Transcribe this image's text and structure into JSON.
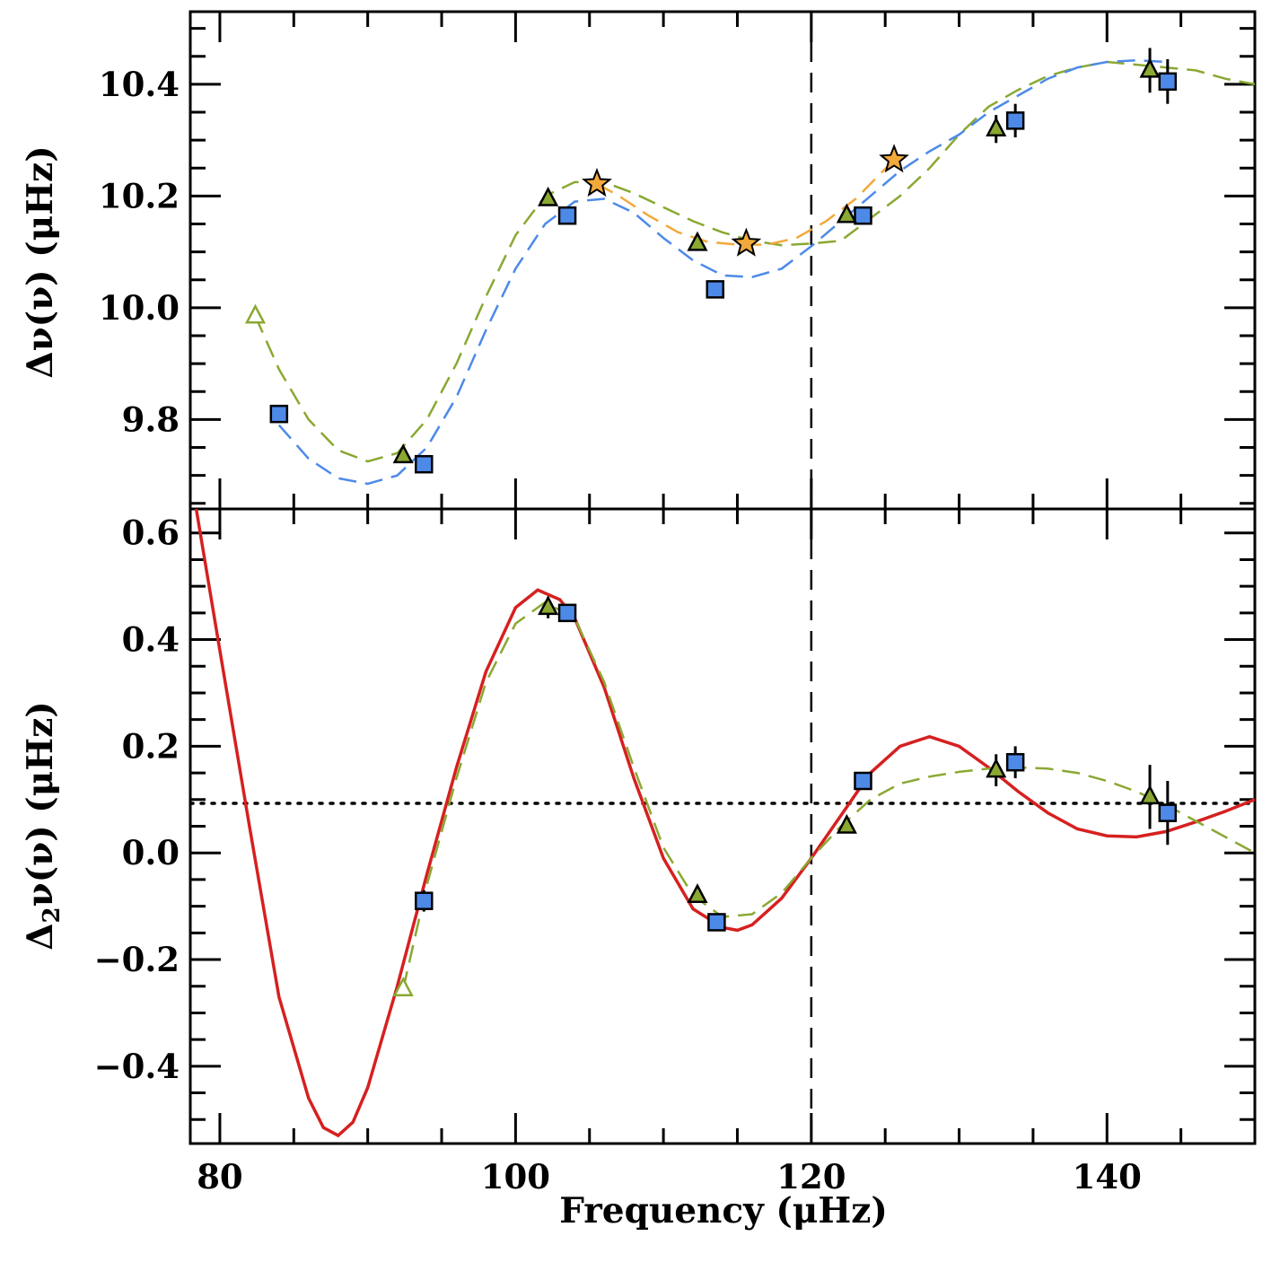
{
  "chart_data": [
    {
      "type": "scatter",
      "panel": "top",
      "ylabel": "Δν(ν) (μHz)",
      "ylabel_parts": {
        "main": "Δν(ν) (μHz)"
      },
      "xlim": [
        78,
        150
      ],
      "ylim": [
        9.64,
        10.53
      ],
      "yticks": [
        9.8,
        10.0,
        10.2,
        10.4
      ],
      "ytick_labels": [
        "9.8",
        "10.0",
        "10.2",
        "10.4"
      ],
      "vline_x": 120,
      "series": [
        {
          "name": "squares",
          "marker": "square",
          "color": "#4d8ae8",
          "points": [
            [
              84.0,
              9.81,
              0
            ],
            [
              93.8,
              9.72,
              0
            ],
            [
              103.5,
              10.165,
              0
            ],
            [
              113.5,
              10.033,
              0
            ],
            [
              123.5,
              10.165,
              0
            ],
            [
              133.8,
              10.335,
              0.03
            ],
            [
              144.1,
              10.405,
              0.04
            ]
          ]
        },
        {
          "name": "triangles",
          "marker": "triangle",
          "color": "#8aa832",
          "points": [
            [
              92.4,
              9.735,
              0
            ],
            [
              102.2,
              10.195,
              0
            ],
            [
              112.3,
              10.115,
              0
            ],
            [
              122.4,
              10.165,
              0
            ],
            [
              132.5,
              10.32,
              0.025
            ],
            [
              142.9,
              10.425,
              0.04
            ]
          ]
        },
        {
          "name": "open-triangles",
          "marker": "open-triangle",
          "color": "#8aa832",
          "points": [
            [
              82.4,
              9.985,
              0
            ]
          ]
        },
        {
          "name": "stars",
          "marker": "star",
          "color": "#f2a93b",
          "points": [
            [
              105.5,
              10.222,
              0
            ],
            [
              115.6,
              10.115,
              0
            ],
            [
              125.6,
              10.265,
              0
            ]
          ]
        }
      ],
      "curves": [
        {
          "name": "green-dashed-fit",
          "color": "#8aa832",
          "style": "dashed",
          "points": [
            [
              82.4,
              9.985
            ],
            [
              84,
              9.89
            ],
            [
              86,
              9.8
            ],
            [
              88,
              9.745
            ],
            [
              90,
              9.725
            ],
            [
              92,
              9.74
            ],
            [
              94,
              9.8
            ],
            [
              96,
              9.9
            ],
            [
              98,
              10.02
            ],
            [
              100,
              10.13
            ],
            [
              102,
              10.2
            ],
            [
              104,
              10.225
            ],
            [
              106,
              10.225
            ],
            [
              108,
              10.205
            ],
            [
              110,
              10.18
            ],
            [
              112,
              10.155
            ],
            [
              114,
              10.135
            ],
            [
              116,
              10.12
            ],
            [
              118,
              10.112
            ],
            [
              120,
              10.115
            ],
            [
              122,
              10.12
            ],
            [
              124,
              10.16
            ],
            [
              126,
              10.2
            ],
            [
              128,
              10.25
            ],
            [
              130,
              10.31
            ],
            [
              132,
              10.36
            ],
            [
              134,
              10.39
            ],
            [
              136,
              10.415
            ],
            [
              138,
              10.43
            ],
            [
              140,
              10.44
            ],
            [
              142,
              10.435
            ],
            [
              144,
              10.43
            ],
            [
              146,
              10.425
            ],
            [
              148,
              10.41
            ],
            [
              150,
              10.4
            ]
          ]
        },
        {
          "name": "blue-dashed-fit",
          "color": "#4d8ae8",
          "style": "dashed",
          "points": [
            [
              84,
              9.79
            ],
            [
              86,
              9.73
            ],
            [
              88,
              9.695
            ],
            [
              90,
              9.685
            ],
            [
              92,
              9.7
            ],
            [
              94,
              9.75
            ],
            [
              96,
              9.84
            ],
            [
              98,
              9.96
            ],
            [
              100,
              10.07
            ],
            [
              102,
              10.15
            ],
            [
              104,
              10.19
            ],
            [
              106,
              10.195
            ],
            [
              108,
              10.17
            ],
            [
              110,
              10.125
            ],
            [
              112,
              10.085
            ],
            [
              114,
              10.058
            ],
            [
              116,
              10.055
            ],
            [
              118,
              10.07
            ],
            [
              120,
              10.11
            ],
            [
              122,
              10.155
            ],
            [
              124,
              10.2
            ],
            [
              126,
              10.245
            ],
            [
              128,
              10.28
            ],
            [
              130,
              10.31
            ],
            [
              132,
              10.35
            ],
            [
              134,
              10.38
            ],
            [
              136,
              10.41
            ],
            [
              138,
              10.43
            ],
            [
              140,
              10.44
            ],
            [
              142,
              10.443
            ],
            [
              144,
              10.44
            ]
          ]
        },
        {
          "name": "orange-dashed-fit",
          "color": "#f2a93b",
          "style": "dashed",
          "points": [
            [
              105.5,
              10.222
            ],
            [
              107,
              10.2
            ],
            [
              109,
              10.165
            ],
            [
              111,
              10.135
            ],
            [
              113,
              10.118
            ],
            [
              115,
              10.113
            ],
            [
              117,
              10.113
            ],
            [
              119,
              10.125
            ],
            [
              121,
              10.155
            ],
            [
              123,
              10.195
            ],
            [
              125.6,
              10.265
            ]
          ]
        }
      ]
    },
    {
      "type": "scatter",
      "panel": "bottom",
      "title": "",
      "xlabel": "Frequency (μHz)",
      "ylabel": "Δ2ν(ν) (μHz)",
      "ylabel_parts": {
        "pre": "Δ",
        "sub": "2",
        "post": "ν(ν) (μHz)"
      },
      "xlim": [
        78,
        150
      ],
      "ylim": [
        -0.545,
        0.645
      ],
      "xticks": [
        80,
        100,
        120,
        140
      ],
      "xtick_labels": [
        "80",
        "100",
        "120",
        "140"
      ],
      "yticks": [
        -0.4,
        -0.2,
        0.0,
        0.2,
        0.4,
        0.6
      ],
      "ytick_labels": [
        "−0.4",
        "−0.2",
        "0.0",
        "0.2",
        "0.4",
        "0.6"
      ],
      "vline_x": 120,
      "hline_y": 0.093,
      "series": [
        {
          "name": "squares",
          "marker": "square",
          "color": "#4d8ae8",
          "points": [
            [
              93.8,
              -0.09,
              0.02
            ],
            [
              103.5,
              0.45,
              0
            ],
            [
              113.6,
              -0.13,
              0
            ],
            [
              123.5,
              0.135,
              0
            ],
            [
              133.8,
              0.17,
              0.03
            ],
            [
              144.1,
              0.075,
              0.06
            ]
          ]
        },
        {
          "name": "triangles",
          "marker": "triangle",
          "color": "#8aa832",
          "points": [
            [
              102.2,
              0.46,
              0.02
            ],
            [
              112.3,
              -0.08,
              0
            ],
            [
              122.4,
              0.05,
              0
            ],
            [
              132.5,
              0.155,
              0.03
            ],
            [
              142.9,
              0.105,
              0.06
            ]
          ]
        },
        {
          "name": "open-triangles",
          "marker": "open-triangle",
          "color": "#8aa832",
          "points": [
            [
              92.4,
              -0.255,
              0
            ]
          ]
        }
      ],
      "curves": [
        {
          "name": "red-fit",
          "color": "#d62020",
          "style": "solid",
          "points": [
            [
              78.4,
              0.645
            ],
            [
              80,
              0.38
            ],
            [
              82,
              0.05
            ],
            [
              84,
              -0.27
            ],
            [
              86,
              -0.46
            ],
            [
              87,
              -0.515
            ],
            [
              88,
              -0.53
            ],
            [
              89,
              -0.505
            ],
            [
              90,
              -0.44
            ],
            [
              92,
              -0.25
            ],
            [
              94,
              -0.04
            ],
            [
              96,
              0.16
            ],
            [
              98,
              0.34
            ],
            [
              100,
              0.46
            ],
            [
              101.5,
              0.493
            ],
            [
              103,
              0.475
            ],
            [
              104,
              0.44
            ],
            [
              106,
              0.31
            ],
            [
              108,
              0.14
            ],
            [
              110,
              -0.01
            ],
            [
              112,
              -0.105
            ],
            [
              114,
              -0.14
            ],
            [
              115,
              -0.145
            ],
            [
              116,
              -0.135
            ],
            [
              118,
              -0.085
            ],
            [
              120,
              -0.01
            ],
            [
              122,
              0.07
            ],
            [
              124,
              0.15
            ],
            [
              126,
              0.2
            ],
            [
              128,
              0.218
            ],
            [
              130,
              0.2
            ],
            [
              132,
              0.16
            ],
            [
              134,
              0.115
            ],
            [
              136,
              0.075
            ],
            [
              138,
              0.045
            ],
            [
              140,
              0.032
            ],
            [
              142,
              0.03
            ],
            [
              144,
              0.04
            ],
            [
              146,
              0.058
            ],
            [
              148,
              0.078
            ],
            [
              150,
              0.1
            ]
          ]
        },
        {
          "name": "green-dashed-fit",
          "color": "#8aa832",
          "style": "dashed",
          "points": [
            [
              92.4,
              -0.255
            ],
            [
              94,
              -0.06
            ],
            [
              96,
              0.14
            ],
            [
              98,
              0.32
            ],
            [
              100,
              0.43
            ],
            [
              102,
              0.47
            ],
            [
              104,
              0.44
            ],
            [
              106,
              0.32
            ],
            [
              108,
              0.16
            ],
            [
              110,
              0.01
            ],
            [
              112,
              -0.08
            ],
            [
              114,
              -0.12
            ],
            [
              116,
              -0.115
            ],
            [
              118,
              -0.075
            ],
            [
              120,
              -0.01
            ],
            [
              122,
              0.05
            ],
            [
              124,
              0.1
            ],
            [
              126,
              0.13
            ],
            [
              128,
              0.143
            ],
            [
              130,
              0.152
            ],
            [
              132,
              0.158
            ],
            [
              134,
              0.16
            ],
            [
              136,
              0.158
            ],
            [
              138,
              0.15
            ],
            [
              140,
              0.135
            ],
            [
              142,
              0.115
            ],
            [
              144,
              0.09
            ],
            [
              146,
              0.06
            ],
            [
              148,
              0.03
            ],
            [
              150,
              0.0
            ]
          ]
        }
      ]
    }
  ]
}
